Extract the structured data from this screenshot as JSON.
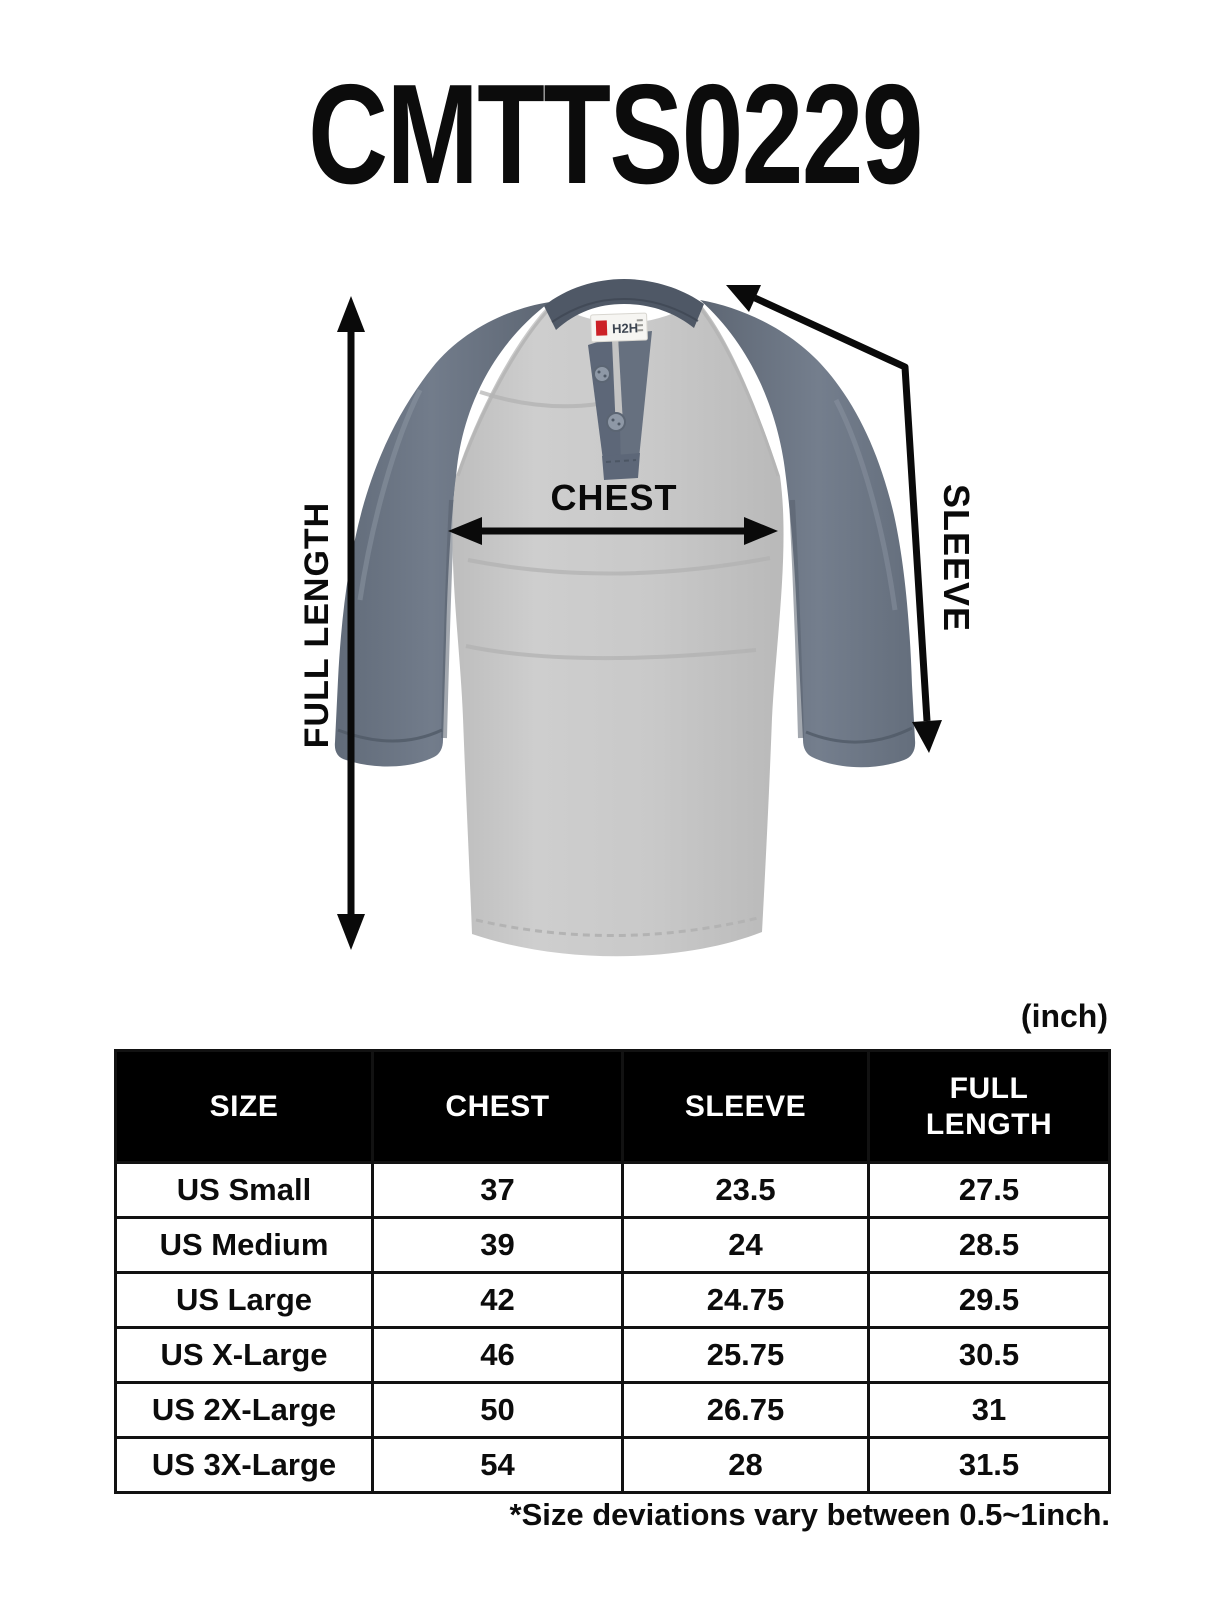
{
  "page": {
    "title": "CMTTS0229",
    "unit_label": "(inch)",
    "footnote": "*Size deviations vary between 0.5~1inch."
  },
  "figure": {
    "labels": {
      "full_length": "FULL LENGTH",
      "chest": "CHEST",
      "sleeve": "SLEEVE"
    },
    "shirt": {
      "brand_label": "H2H",
      "colors": {
        "body": "#c8c8c8",
        "body_highlight": "#d9d9d9",
        "sleeve": "#6e7888",
        "sleeve_shadow": "#59636f",
        "collar": "#4f5866",
        "placket": "#5d6778",
        "button": "#8e98a6",
        "label_bg": "#f6f5f2",
        "label_red": "#cc2127",
        "arrow": "#0a0a0a"
      }
    }
  },
  "table": {
    "columns": [
      "SIZE",
      "CHEST",
      "SLEEVE",
      "FULL LENGTH"
    ],
    "rows": [
      {
        "size": "US Small",
        "chest": "37",
        "sleeve": "23.5",
        "full_length": "27.5"
      },
      {
        "size": "US Medium",
        "chest": "39",
        "sleeve": "24",
        "full_length": "28.5"
      },
      {
        "size": "US Large",
        "chest": "42",
        "sleeve": "24.75",
        "full_length": "29.5"
      },
      {
        "size": "US X-Large",
        "chest": "46",
        "sleeve": "25.75",
        "full_length": "30.5"
      },
      {
        "size": "US 2X-Large",
        "chest": "50",
        "sleeve": "26.75",
        "full_length": "31"
      },
      {
        "size": "US 3X-Large",
        "chest": "54",
        "sleeve": "28",
        "full_length": "31.5"
      }
    ]
  }
}
